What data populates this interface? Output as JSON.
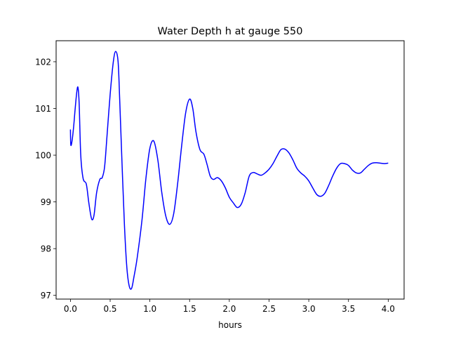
{
  "chart_data": {
    "type": "line",
    "title": "Water Depth h at gauge 550",
    "xlabel": "hours",
    "ylabel": "",
    "xlim": [
      -0.18,
      4.2
    ],
    "ylim": [
      96.92,
      102.45
    ],
    "xticks": [
      0.0,
      0.5,
      1.0,
      1.5,
      2.0,
      2.5,
      3.0,
      3.5,
      4.0
    ],
    "xtick_labels": [
      "0.0",
      "0.5",
      "1.0",
      "1.5",
      "2.0",
      "2.5",
      "3.0",
      "3.5",
      "4.0"
    ],
    "yticks": [
      97,
      98,
      99,
      100,
      101,
      102
    ],
    "ytick_labels": [
      "97",
      "98",
      "99",
      "100",
      "101",
      "102"
    ],
    "grid": false,
    "legend": "none",
    "series": [
      {
        "color": "#0000ff",
        "x": [
          0.0,
          0.005,
          0.02,
          0.04,
          0.06,
          0.08,
          0.095,
          0.11,
          0.13,
          0.16,
          0.2,
          0.23,
          0.26,
          0.28,
          0.3,
          0.33,
          0.37,
          0.4,
          0.43,
          0.46,
          0.5,
          0.54,
          0.57,
          0.6,
          0.62,
          0.65,
          0.68,
          0.71,
          0.74,
          0.77,
          0.8,
          0.84,
          0.9,
          0.95,
          1.0,
          1.05,
          1.1,
          1.15,
          1.2,
          1.25,
          1.3,
          1.35,
          1.4,
          1.45,
          1.5,
          1.54,
          1.58,
          1.63,
          1.68,
          1.72,
          1.76,
          1.8,
          1.85,
          1.9,
          1.95,
          2.0,
          2.05,
          2.1,
          2.15,
          2.2,
          2.25,
          2.3,
          2.35,
          2.4,
          2.45,
          2.5,
          2.55,
          2.6,
          2.65,
          2.7,
          2.75,
          2.8,
          2.85,
          2.9,
          2.95,
          3.0,
          3.05,
          3.1,
          3.15,
          3.2,
          3.25,
          3.3,
          3.35,
          3.4,
          3.45,
          3.5,
          3.55,
          3.6,
          3.65,
          3.7,
          3.75,
          3.8,
          3.85,
          3.9,
          3.95,
          4.0
        ],
        "y": [
          100.55,
          100.22,
          100.3,
          100.6,
          101.0,
          101.35,
          101.45,
          101.1,
          100.0,
          99.5,
          99.38,
          99.0,
          98.68,
          98.62,
          98.75,
          99.2,
          99.48,
          99.52,
          99.75,
          100.4,
          101.3,
          102.0,
          102.22,
          102.0,
          101.2,
          99.8,
          98.5,
          97.6,
          97.2,
          97.15,
          97.4,
          97.8,
          98.6,
          99.5,
          100.15,
          100.3,
          99.9,
          99.2,
          98.7,
          98.52,
          98.75,
          99.4,
          100.2,
          100.9,
          101.2,
          101.0,
          100.5,
          100.12,
          100.02,
          99.8,
          99.55,
          99.48,
          99.52,
          99.45,
          99.3,
          99.1,
          98.98,
          98.88,
          98.95,
          99.2,
          99.55,
          99.63,
          99.6,
          99.57,
          99.62,
          99.7,
          99.82,
          99.98,
          100.12,
          100.13,
          100.05,
          99.9,
          99.72,
          99.62,
          99.55,
          99.45,
          99.3,
          99.16,
          99.12,
          99.18,
          99.35,
          99.55,
          99.72,
          99.82,
          99.82,
          99.78,
          99.68,
          99.62,
          99.62,
          99.7,
          99.78,
          99.83,
          99.84,
          99.83,
          99.82,
          99.83
        ]
      }
    ]
  }
}
